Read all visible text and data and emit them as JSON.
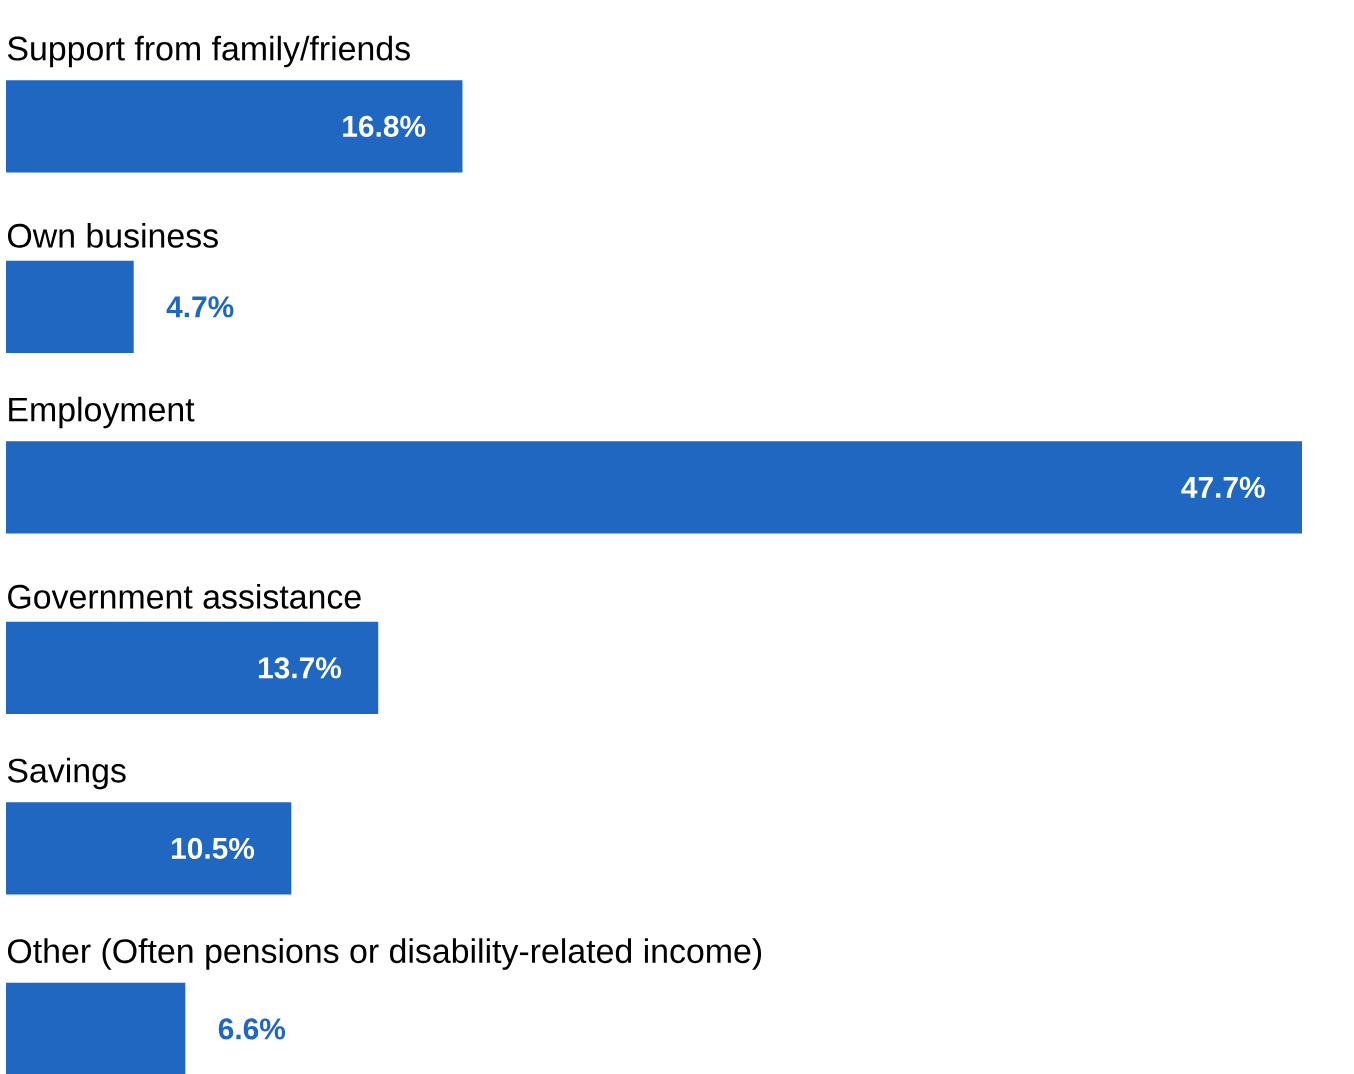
{
  "chart_data": {
    "type": "bar",
    "orientation": "horizontal",
    "categories": [
      "Support from family/friends",
      "Own business",
      "Employment",
      "Government assistance",
      "Savings",
      "Other (Often pensions or disability-related income)"
    ],
    "values": [
      16.8,
      4.7,
      47.7,
      13.7,
      10.5,
      6.6
    ],
    "value_labels": [
      "16.8%",
      "4.7%",
      "47.7%",
      "13.7%",
      "10.5%",
      "6.6%"
    ],
    "color": "#1f67c0"
  }
}
